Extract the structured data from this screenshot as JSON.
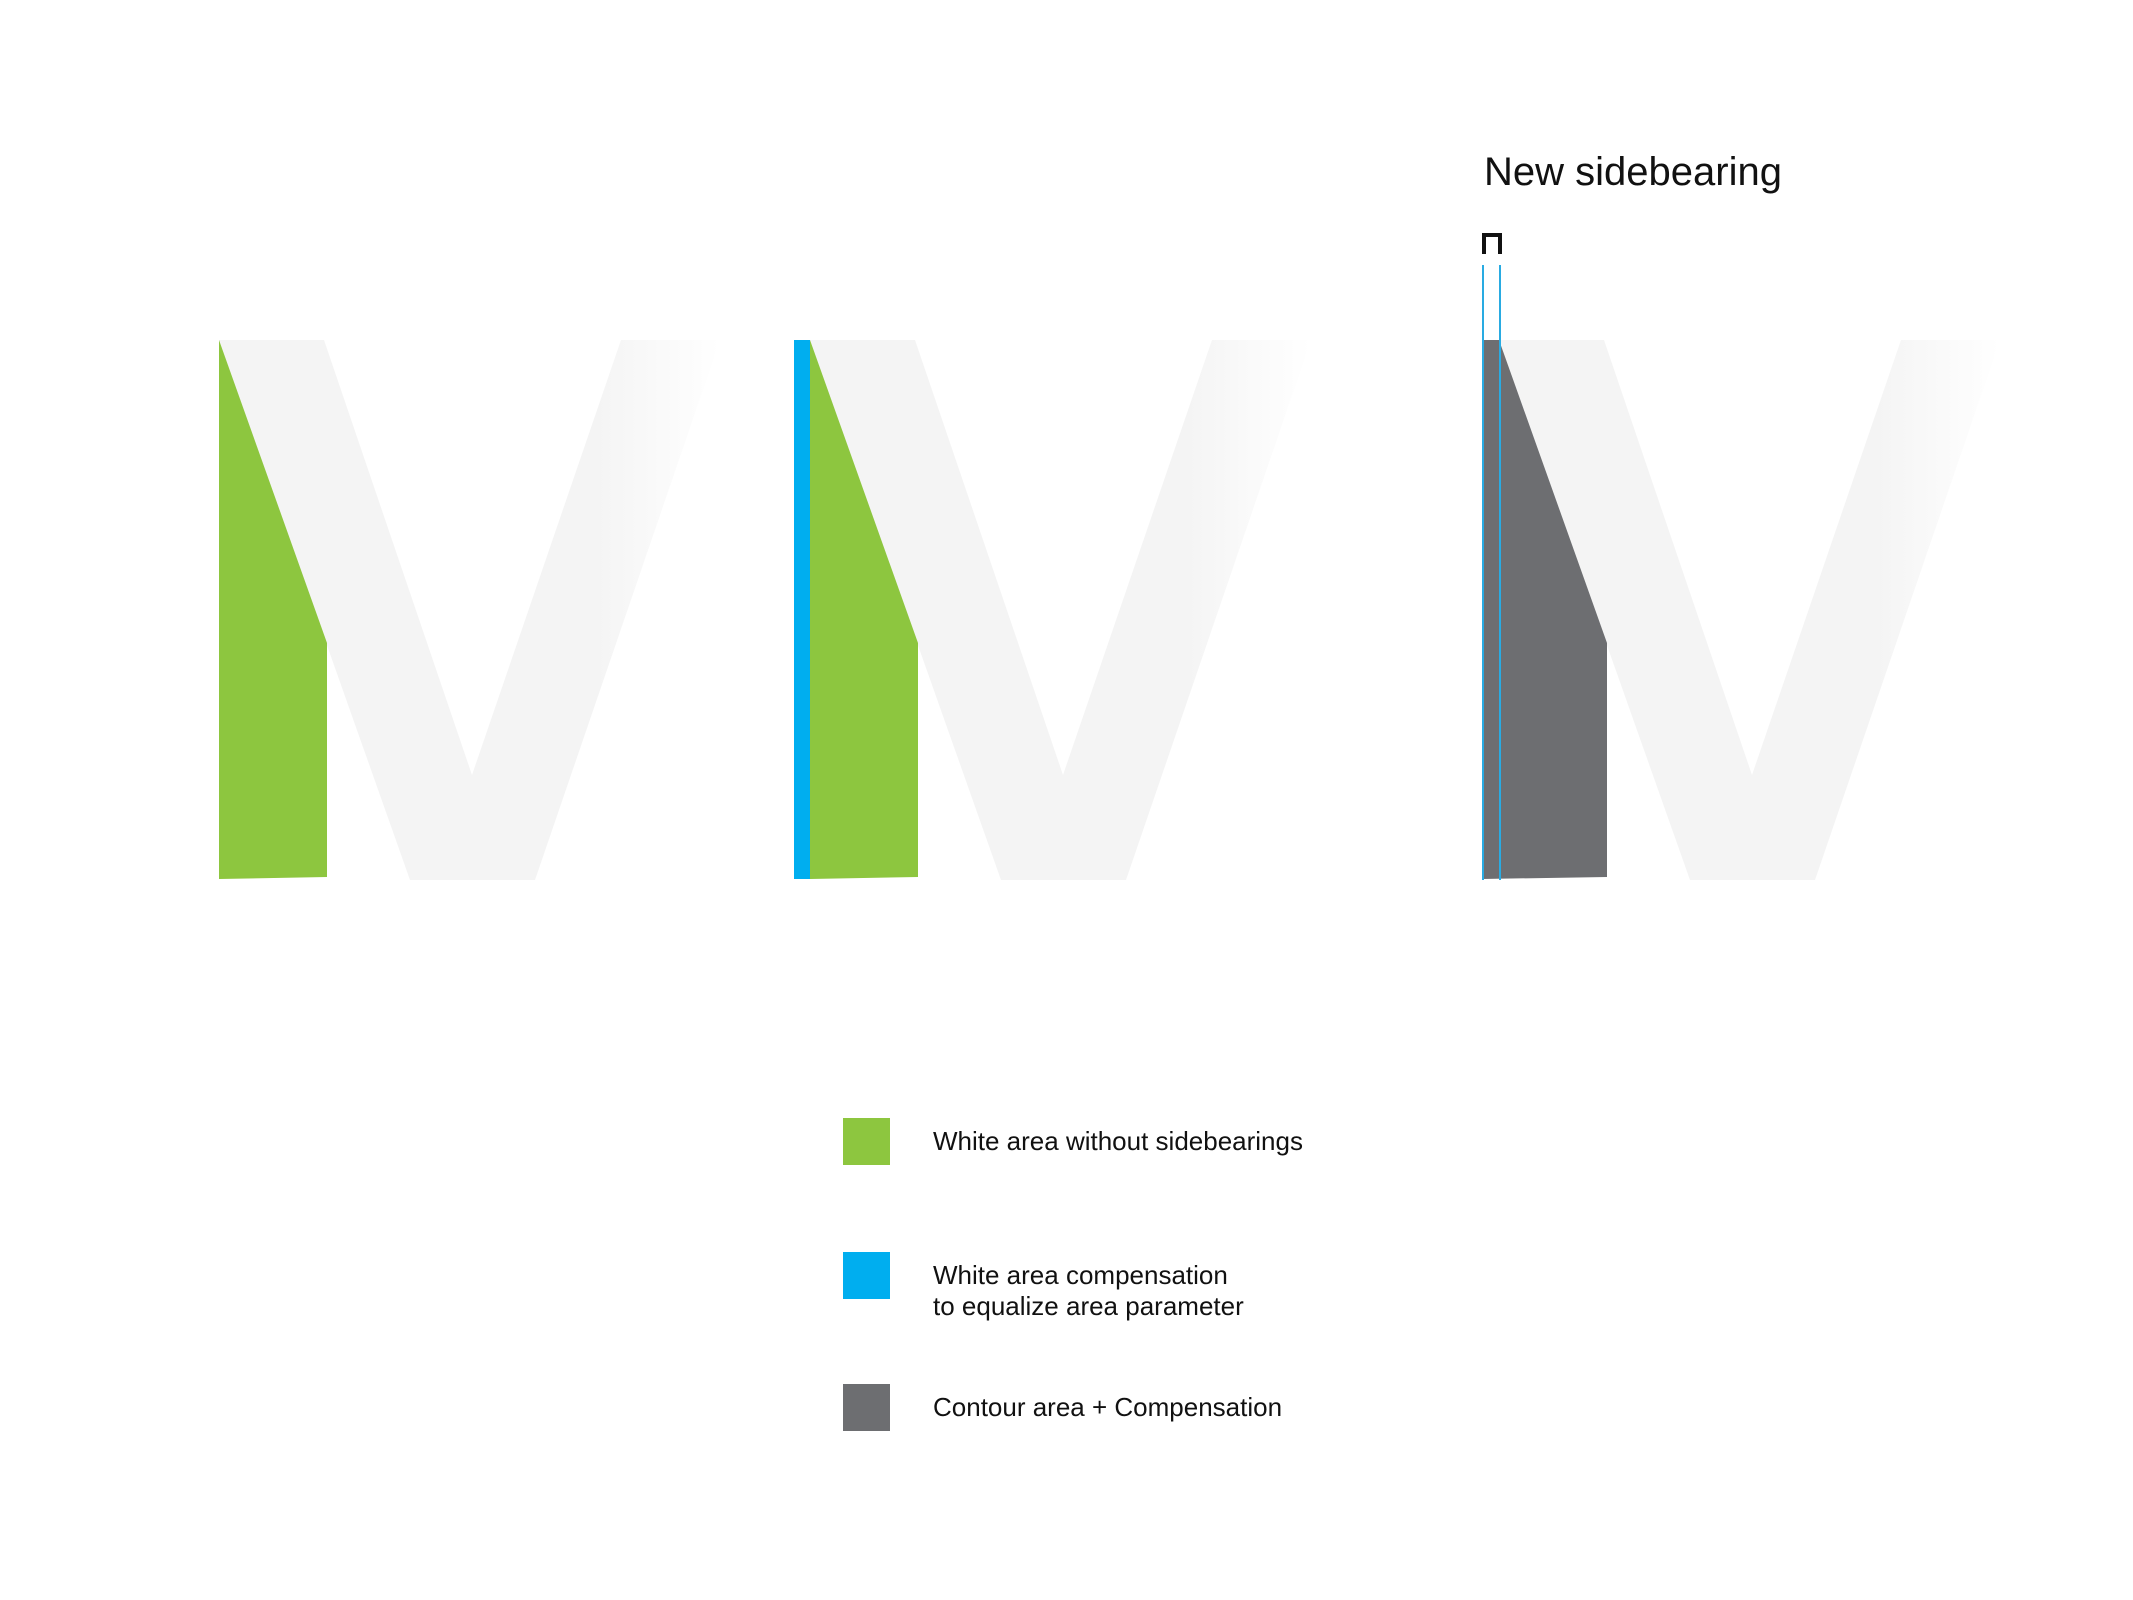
{
  "heading": {
    "label": "New sidebearing"
  },
  "colors": {
    "letter_fill_light": "#f4f4f4",
    "letter_fill_fade": "#fbfbfb",
    "white_area": "#8dc63f",
    "compensation": "#00aeef",
    "contour": "#6d6e71",
    "guide_line": "#29abe2",
    "bracket": "#111111"
  },
  "panels": [
    {
      "glyph": "V",
      "highlight": "white-area"
    },
    {
      "glyph": "V",
      "highlight": "white-area-plus-compensation"
    },
    {
      "glyph": "V",
      "highlight": "contour-plus-compensation"
    }
  ],
  "legend": {
    "items": [
      {
        "color": "#8dc63f",
        "lines": [
          "White area without sidebearings"
        ]
      },
      {
        "color": "#00aeef",
        "lines": [
          "White area compensation",
          "to equalize area parameter"
        ]
      },
      {
        "color": "#6d6e71",
        "lines": [
          "Contour area + Compensation"
        ]
      }
    ]
  }
}
